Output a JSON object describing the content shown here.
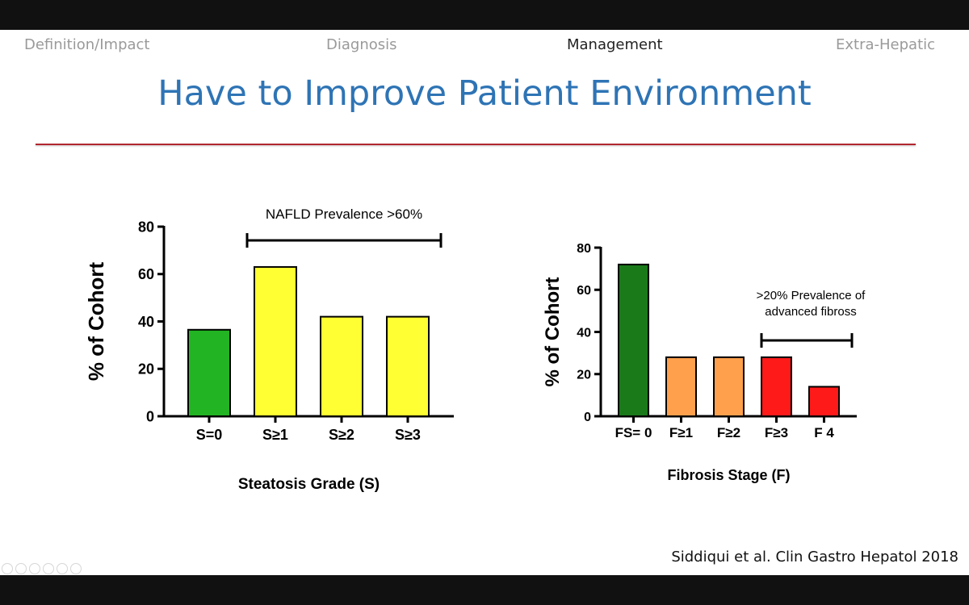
{
  "nav": [
    {
      "label": "Definition/Impact",
      "active": false
    },
    {
      "label": "Diagnosis",
      "active": false
    },
    {
      "label": "Management",
      "active": true
    },
    {
      "label": "Extra-Hepatic",
      "active": false
    }
  ],
  "slide_title": "Have to Improve Patient Environment",
  "citation": "Siddiqui et al. Clin Gastro Hepatol 2018",
  "colors": {
    "title": "#2e74b5",
    "rule": "#b3262e"
  },
  "chart_data": [
    {
      "type": "bar",
      "title": "",
      "xlabel": "Steatosis Grade (S)",
      "ylabel": "% of Cohort",
      "ylim": [
        0,
        80
      ],
      "yticks": [
        0,
        20,
        40,
        60,
        80
      ],
      "categories": [
        "S=0",
        "S≥1",
        "S≥2",
        "S≥3"
      ],
      "values": [
        36.5,
        63,
        42,
        42
      ],
      "colors": [
        "#22b422",
        "#ffff33",
        "#ffff33",
        "#ffff33"
      ],
      "annotation": {
        "text": "NAFLD Prevalence >60%",
        "span": [
          "S≥1",
          "S≥3"
        ]
      }
    },
    {
      "type": "bar",
      "title": "",
      "xlabel": "Fibrosis Stage (F)",
      "ylabel": "% of Cohort",
      "ylim": [
        0,
        80
      ],
      "yticks": [
        0,
        20,
        40,
        60,
        80
      ],
      "categories": [
        "FS= 0",
        "F≥1",
        "F≥2",
        "F≥3",
        "F 4"
      ],
      "values": [
        72,
        28,
        28,
        28,
        14
      ],
      "colors": [
        "#1a7a1a",
        "#ffa04d",
        "#ffa04d",
        "#ff1a1a",
        "#ff1a1a"
      ],
      "annotation": {
        "text_lines": [
          ">20% Prevalence of",
          "advanced fibross"
        ],
        "span": [
          "F≥3",
          "F 4"
        ]
      }
    }
  ]
}
